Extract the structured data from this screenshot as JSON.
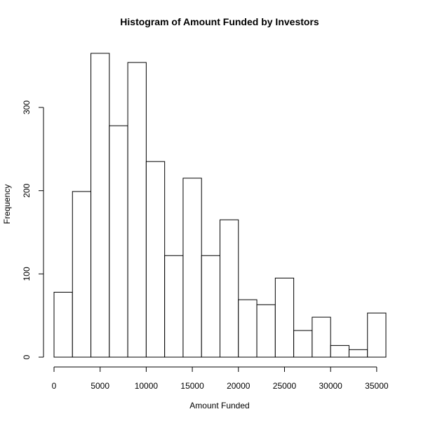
{
  "chart_data": {
    "type": "bar",
    "title": "Histogram of Amount Funded by Investors",
    "xlabel": "Amount Funded",
    "ylabel": "Frequency",
    "bin_width": 2000,
    "bin_edges": [
      0,
      2000,
      4000,
      6000,
      8000,
      10000,
      12000,
      14000,
      16000,
      18000,
      20000,
      22000,
      24000,
      26000,
      28000,
      30000,
      32000,
      34000,
      36000
    ],
    "values": [
      78,
      199,
      365,
      278,
      354,
      235,
      122,
      215,
      122,
      165,
      69,
      63,
      95,
      32,
      48,
      14,
      9,
      53
    ],
    "xlim": [
      0,
      36000
    ],
    "ylim": [
      0,
      365
    ],
    "x_ticks": [
      0,
      5000,
      10000,
      15000,
      20000,
      25000,
      30000,
      35000
    ],
    "x_tick_labels": [
      "0",
      "5000",
      "10000",
      "15000",
      "20000",
      "25000",
      "30000",
      "35000"
    ],
    "y_ticks": [
      0,
      100,
      200,
      300
    ],
    "y_tick_labels": [
      "0",
      "100",
      "200",
      "300"
    ],
    "grid": false,
    "legend": "none",
    "bar_fill": "#ffffff",
    "bar_stroke": "#000000"
  }
}
